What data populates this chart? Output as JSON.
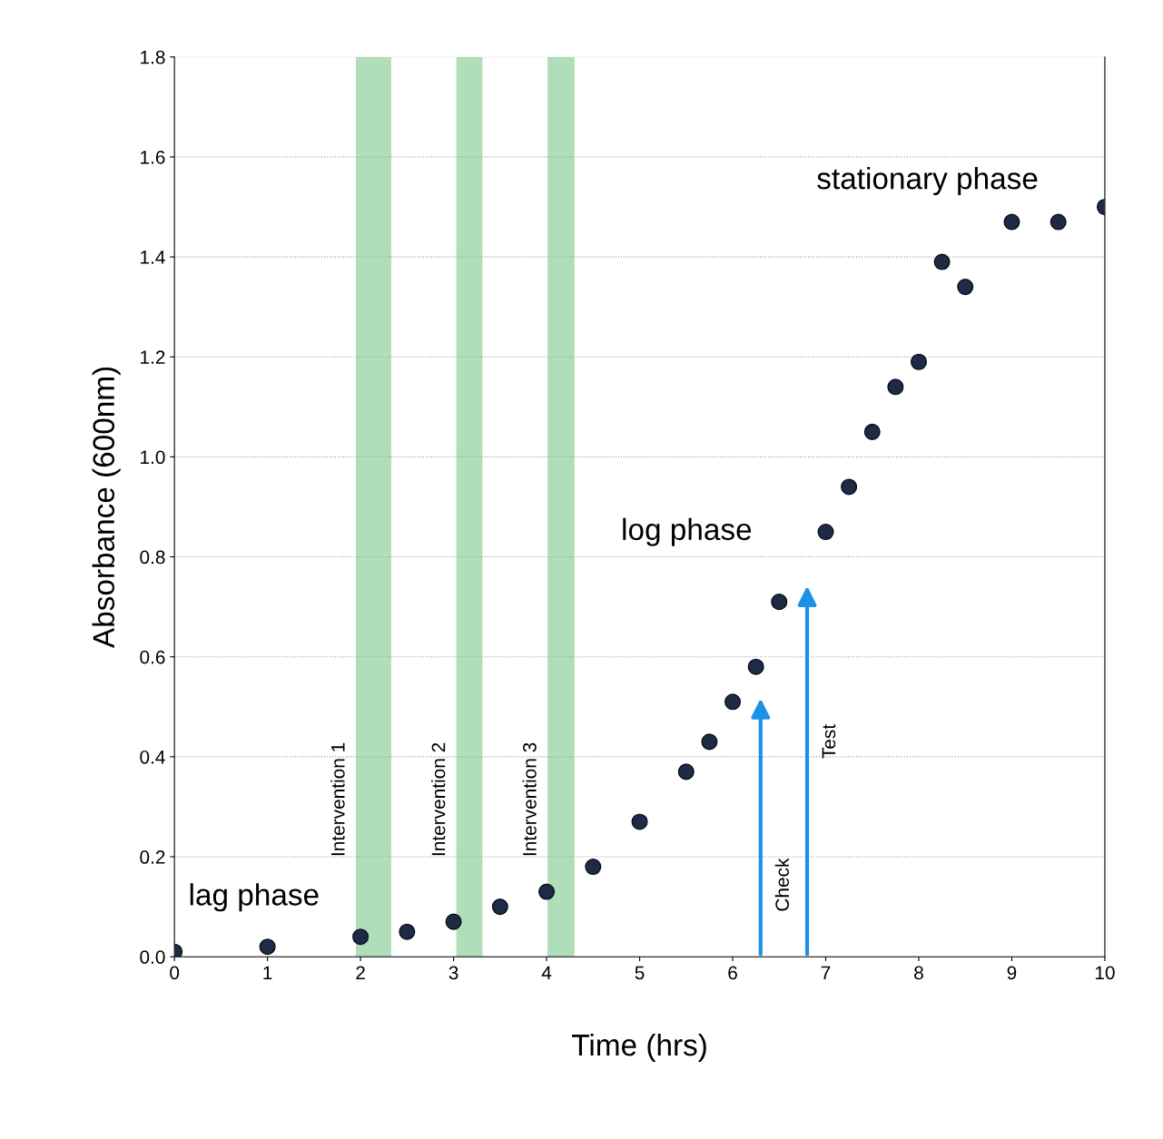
{
  "chart_data": {
    "type": "scatter",
    "xlabel": "Time (hrs)",
    "ylabel": "Absorbance (600nm)",
    "x": [
      0,
      1,
      2,
      2.5,
      3,
      3.5,
      4,
      4.5,
      5,
      5.5,
      5.75,
      6,
      6.25,
      6.5,
      7,
      7.25,
      7.5,
      7.75,
      8,
      8.25,
      8.5,
      9,
      9.5,
      10
    ],
    "series": [
      {
        "color": "#1f2a44",
        "values": [
          0.01,
          0.02,
          0.04,
          0.05,
          0.07,
          0.1,
          0.13,
          0.18,
          0.27,
          0.37,
          0.43,
          0.51,
          0.58,
          0.71,
          0.85,
          0.94,
          1.05,
          1.14,
          1.19,
          1.39,
          1.34,
          1.47,
          1.47,
          1.5
        ]
      }
    ],
    "marker": "circle",
    "xlim": [
      0,
      10
    ],
    "ylim": [
      0,
      1.8
    ],
    "xticks": [
      0,
      1,
      2,
      3,
      4,
      5,
      6,
      7,
      8,
      9,
      10
    ],
    "yticks": [
      {
        "value": 0,
        "label": "0.0"
      },
      0.2,
      0.4,
      0.6,
      0.8,
      {
        "value": 1.0,
        "label": "1.0"
      },
      1.2,
      1.4,
      1.6,
      1.8
    ],
    "grid": "y",
    "legend": false,
    "bands": [
      {
        "axis": "x",
        "from": 1.95,
        "to": 2.33,
        "label": "Intervention 1",
        "color": "#7cc88a"
      },
      {
        "axis": "x",
        "from": 3.03,
        "to": 3.31,
        "label": "Intervention 2",
        "color": "#7cc88a"
      },
      {
        "axis": "x",
        "from": 4.01,
        "to": 4.3,
        "label": "Intervention 3",
        "color": "#7cc88a"
      }
    ],
    "annotations": [
      "lag phase",
      "log phase",
      "stationary phase",
      "Check",
      "Test"
    ]
  }
}
